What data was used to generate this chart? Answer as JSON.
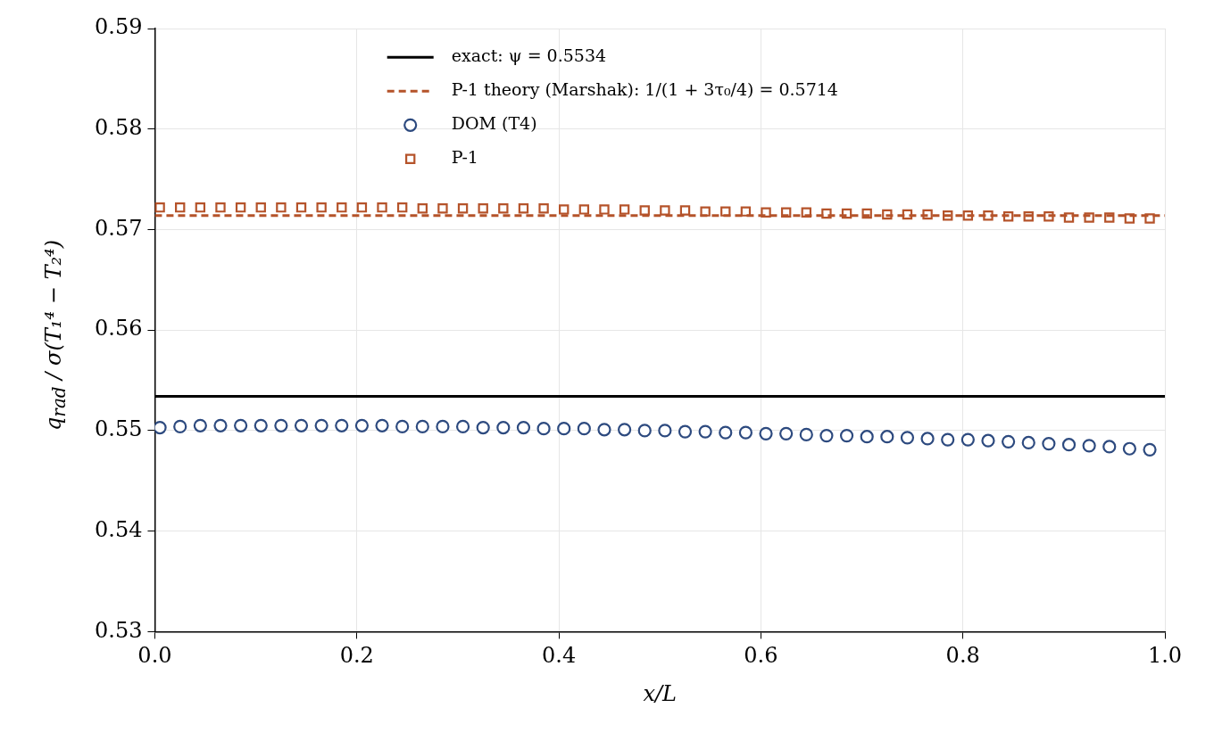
{
  "chart_data": {
    "type": "scatter",
    "xlabel": "x/L",
    "ylabel": "q$_{rad}$ / σ(T₁⁴ − T₂⁴)",
    "xlim": [
      0,
      1
    ],
    "xticks": [
      {
        "value": 0,
        "label": "0.0"
      },
      {
        "value": 0.2,
        "label": "0.2"
      },
      {
        "value": 0.4,
        "label": "0.4"
      },
      {
        "value": 0.6,
        "label": "0.6"
      },
      {
        "value": 0.8,
        "label": "0.8"
      },
      {
        "value": 1,
        "label": "1.0"
      }
    ],
    "ylim": [
      0.53,
      0.59
    ],
    "yticks": [
      0.53,
      0.54,
      0.55,
      0.56,
      0.57,
      0.58,
      0.59
    ],
    "grid": true,
    "legend": "top",
    "series": [
      {
        "name": "exact: ψ = 0.5534",
        "type": "line",
        "color": "#000000",
        "line_style": "solid",
        "marker": "none",
        "x": [
          0,
          1
        ],
        "values": [
          0.5534,
          0.5534
        ]
      },
      {
        "name": "P-1 theory (Marshak): 1/(1 + 3τ₀/4) = 0.5714",
        "type": "line",
        "color": "#b5532a",
        "line_style": "dashed",
        "marker": "none",
        "x": [
          0,
          1
        ],
        "values": [
          0.5714,
          0.5714
        ]
      },
      {
        "name": "DOM (T4)",
        "type": "scatter",
        "color": "#2d4a7f",
        "marker": "circle",
        "x": [
          0.005,
          0.025,
          0.045,
          0.065,
          0.085,
          0.105,
          0.125,
          0.145,
          0.165,
          0.185,
          0.205,
          0.225,
          0.245,
          0.265,
          0.285,
          0.305,
          0.325,
          0.345,
          0.365,
          0.385,
          0.405,
          0.425,
          0.445,
          0.465,
          0.485,
          0.505,
          0.525,
          0.545,
          0.565,
          0.585,
          0.605,
          0.625,
          0.645,
          0.665,
          0.685,
          0.705,
          0.725,
          0.745,
          0.765,
          0.785,
          0.805,
          0.825,
          0.845,
          0.865,
          0.885,
          0.905,
          0.925,
          0.945,
          0.965,
          0.985
        ],
        "values": [
          0.5503,
          0.5504,
          0.5505,
          0.5505,
          0.5505,
          0.5505,
          0.5505,
          0.5505,
          0.5505,
          0.5505,
          0.5505,
          0.5505,
          0.5504,
          0.5504,
          0.5504,
          0.5504,
          0.5503,
          0.5503,
          0.5503,
          0.5502,
          0.5502,
          0.5502,
          0.5501,
          0.5501,
          0.55,
          0.55,
          0.5499,
          0.5499,
          0.5498,
          0.5498,
          0.5497,
          0.5497,
          0.5496,
          0.5495,
          0.5495,
          0.5494,
          0.5494,
          0.5493,
          0.5492,
          0.5491,
          0.5491,
          0.549,
          0.5489,
          0.5488,
          0.5487,
          0.5486,
          0.5485,
          0.5484,
          0.5482,
          0.5481
        ]
      },
      {
        "name": "P-1",
        "type": "scatter",
        "color": "#b5532a",
        "marker": "square",
        "x": [
          0.005,
          0.025,
          0.045,
          0.065,
          0.085,
          0.105,
          0.125,
          0.145,
          0.165,
          0.185,
          0.205,
          0.225,
          0.245,
          0.265,
          0.285,
          0.305,
          0.325,
          0.345,
          0.365,
          0.385,
          0.405,
          0.425,
          0.445,
          0.465,
          0.485,
          0.505,
          0.525,
          0.545,
          0.565,
          0.585,
          0.605,
          0.625,
          0.645,
          0.665,
          0.685,
          0.705,
          0.725,
          0.745,
          0.765,
          0.785,
          0.805,
          0.825,
          0.845,
          0.865,
          0.885,
          0.905,
          0.925,
          0.945,
          0.965,
          0.985
        ],
        "values": [
          0.5722,
          0.5722,
          0.5722,
          0.5722,
          0.5722,
          0.5722,
          0.5722,
          0.5722,
          0.5722,
          0.5722,
          0.5722,
          0.5722,
          0.5722,
          0.5721,
          0.5721,
          0.5721,
          0.5721,
          0.5721,
          0.5721,
          0.5721,
          0.572,
          0.572,
          0.572,
          0.572,
          0.5719,
          0.5719,
          0.5719,
          0.5718,
          0.5718,
          0.5718,
          0.5717,
          0.5717,
          0.5717,
          0.5716,
          0.5716,
          0.5716,
          0.5715,
          0.5715,
          0.5715,
          0.5714,
          0.5714,
          0.5714,
          0.5713,
          0.5713,
          0.5713,
          0.5712,
          0.5712,
          0.5712,
          0.5711,
          0.5711
        ]
      }
    ]
  }
}
